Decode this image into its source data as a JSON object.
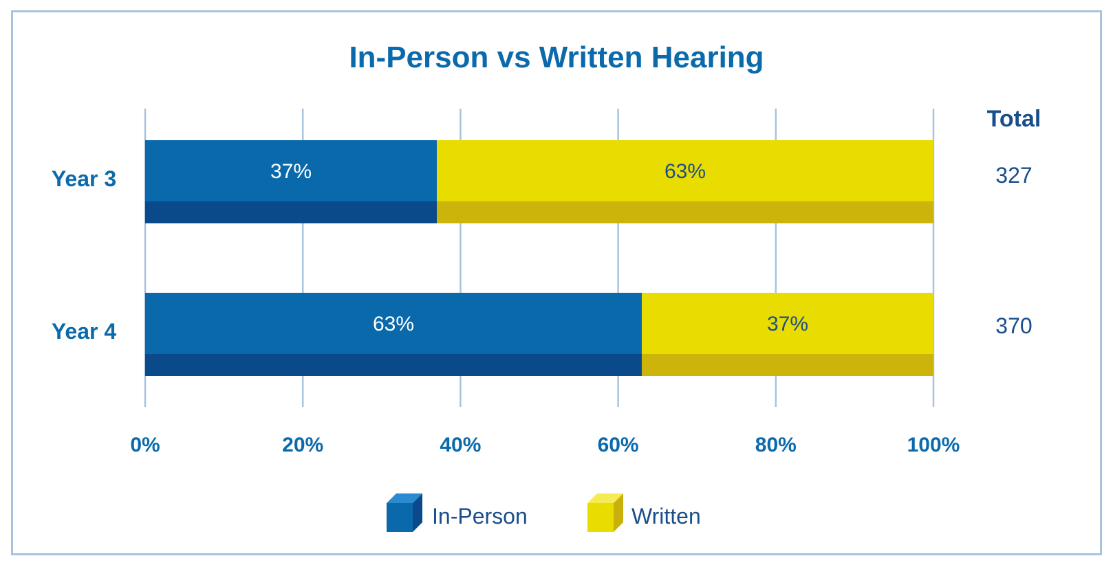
{
  "chart_data": {
    "type": "bar",
    "orientation": "horizontal",
    "stacked": "percent",
    "title": "In-Person vs Written Hearing",
    "categories": [
      "Year 3",
      "Year 4"
    ],
    "series": [
      {
        "name": "In-Person",
        "values": [
          37,
          63
        ],
        "labels": [
          "37%",
          "63%"
        ],
        "color": "#0a69ab",
        "shade": "#0b4a8a",
        "label_color": "#ffffff"
      },
      {
        "name": "Written",
        "values": [
          63,
          37
        ],
        "labels": [
          "63%",
          "37%"
        ],
        "color": "#e8dc00",
        "shade": "#cdb40b",
        "label_color": "#1a4e8a"
      }
    ],
    "x_ticks": [
      "0%",
      "20%",
      "40%",
      "60%",
      "80%",
      "100%"
    ],
    "xlim": [
      0,
      100
    ],
    "totals_header": "Total",
    "totals": [
      "327",
      "370"
    ],
    "grid": true,
    "legend_position": "bottom"
  },
  "colors": {
    "title": "#0a6aab",
    "grid": "#a9c3de",
    "frame": "#a9c3de"
  }
}
